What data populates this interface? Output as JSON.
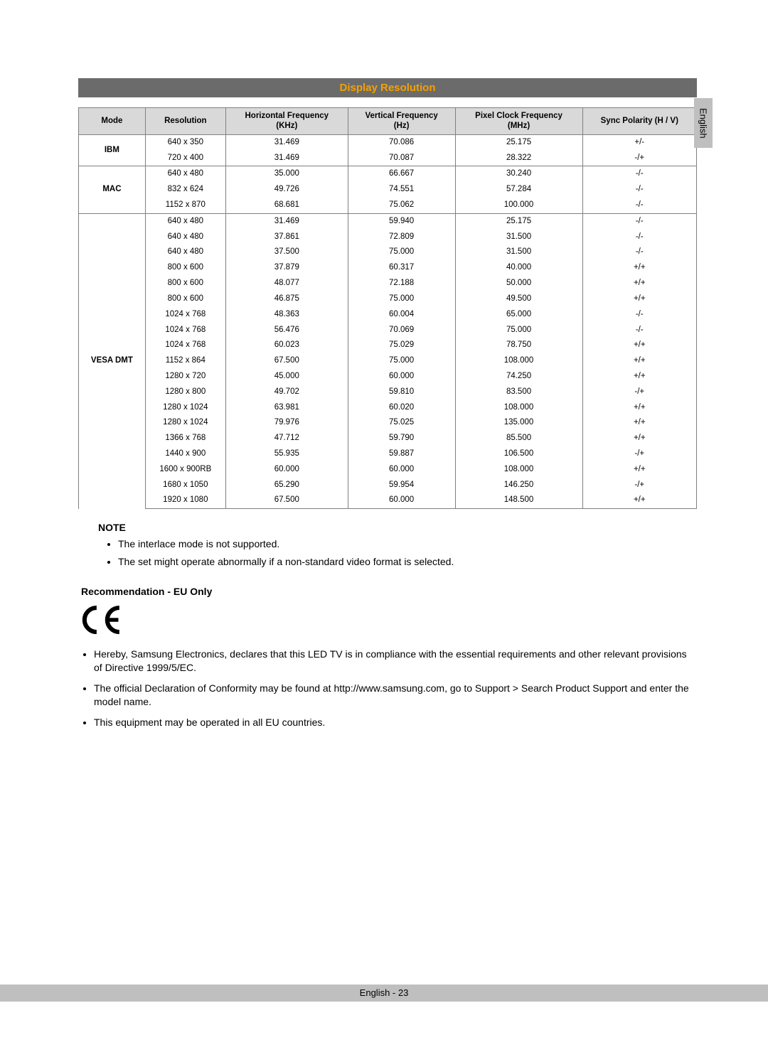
{
  "language_tab": "English",
  "section_heading": "Display Resolution",
  "section_heading_color": "#f5a100",
  "section_heading_bg": "#6b6b6b",
  "table": {
    "header_bg": "#d9d9d9",
    "border_color": "#808080",
    "columns": [
      "Mode",
      "Resolution",
      "Horizontal Frequency\n(KHz)",
      "Vertical Frequency\n(Hz)",
      "Pixel Clock Frequency\n(MHz)",
      "Sync Polarity (H / V)"
    ],
    "groups": [
      {
        "mode": "IBM",
        "rows": [
          [
            "640 x 350",
            "31.469",
            "70.086",
            "25.175",
            "+/-"
          ],
          [
            "720 x 400",
            "31.469",
            "70.087",
            "28.322",
            "-/+"
          ]
        ]
      },
      {
        "mode": "MAC",
        "rows": [
          [
            "640 x 480",
            "35.000",
            "66.667",
            "30.240",
            "-/-"
          ],
          [
            "832 x 624",
            "49.726",
            "74.551",
            "57.284",
            "-/-"
          ],
          [
            "1152 x 870",
            "68.681",
            "75.062",
            "100.000",
            "-/-"
          ]
        ]
      },
      {
        "mode": "VESA DMT",
        "rows": [
          [
            "640 x 480",
            "31.469",
            "59.940",
            "25.175",
            "-/-"
          ],
          [
            "640 x 480",
            "37.861",
            "72.809",
            "31.500",
            "-/-"
          ],
          [
            "640 x 480",
            "37.500",
            "75.000",
            "31.500",
            "-/-"
          ],
          [
            "800 x 600",
            "37.879",
            "60.317",
            "40.000",
            "+/+"
          ],
          [
            "800 x 600",
            "48.077",
            "72.188",
            "50.000",
            "+/+"
          ],
          [
            "800 x 600",
            "46.875",
            "75.000",
            "49.500",
            "+/+"
          ],
          [
            "1024 x 768",
            "48.363",
            "60.004",
            "65.000",
            "-/-"
          ],
          [
            "1024 x 768",
            "56.476",
            "70.069",
            "75.000",
            "-/-"
          ],
          [
            "1024 x 768",
            "60.023",
            "75.029",
            "78.750",
            "+/+"
          ],
          [
            "1152 x 864",
            "67.500",
            "75.000",
            "108.000",
            "+/+"
          ],
          [
            "1280 x 720",
            "45.000",
            "60.000",
            "74.250",
            "+/+"
          ],
          [
            "1280 x 800",
            "49.702",
            "59.810",
            "83.500",
            "-/+"
          ],
          [
            "1280 x 1024",
            "63.981",
            "60.020",
            "108.000",
            "+/+"
          ],
          [
            "1280 x 1024",
            "79.976",
            "75.025",
            "135.000",
            "+/+"
          ],
          [
            "1366 x 768",
            "47.712",
            "59.790",
            "85.500",
            "+/+"
          ],
          [
            "1440 x 900",
            "55.935",
            "59.887",
            "106.500",
            "-/+"
          ],
          [
            "1600 x 900RB",
            "60.000",
            "60.000",
            "108.000",
            "+/+"
          ],
          [
            "1680 x 1050",
            "65.290",
            "59.954",
            "146.250",
            "-/+"
          ],
          [
            "1920 x 1080",
            "67.500",
            "60.000",
            "148.500",
            "+/+"
          ]
        ]
      }
    ]
  },
  "note": {
    "title": "NOTE",
    "items": [
      "The interlace mode is not supported.",
      "The set might operate abnormally if a non-standard video format is selected."
    ]
  },
  "recommendation_heading": "Recommendation - EU Only",
  "eu_items": [
    "Hereby, Samsung Electronics, declares that this LED TV is in compliance with the essential requirements and other relevant provisions of Directive 1999/5/EC.",
    "The official Declaration of Conformity may be found at http://www.samsung.com, go to Support > Search Product Support and enter the model name.",
    "This equipment may be operated in all EU countries."
  ],
  "footer": "English - 23"
}
